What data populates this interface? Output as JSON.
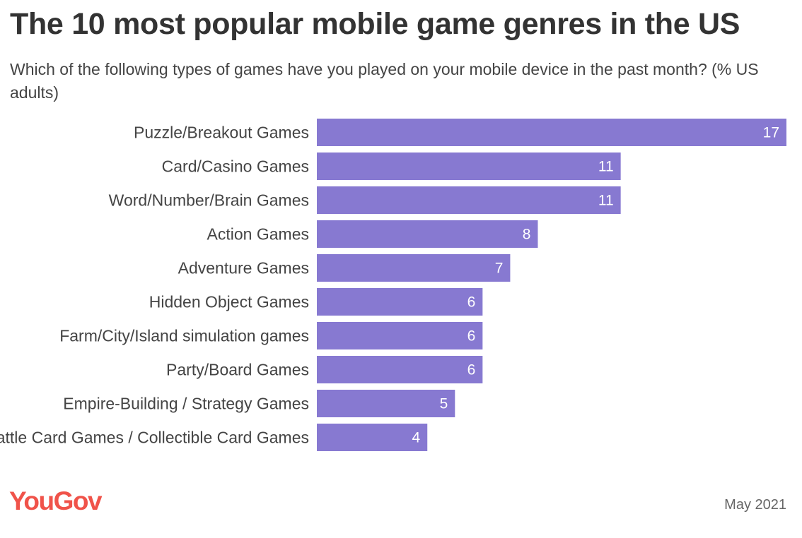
{
  "header": {
    "title": "The 10 most popular mobile game genres in the US",
    "subtitle": "Which of the following types of games have you played on your mobile device in the past month? (% US adults)"
  },
  "footer": {
    "logo_text": "YouGov",
    "date": "May 2021"
  },
  "colors": {
    "bar": "#8779d1",
    "logo": "#f0534a"
  },
  "chart_data": {
    "type": "bar",
    "orientation": "horizontal",
    "title": "The 10 most popular mobile game genres in the US",
    "subtitle": "Which of the following types of games have you played on your mobile device in the past month? (% US adults)",
    "categories": [
      "Puzzle/Breakout Games",
      "Card/Casino Games",
      "Word/Number/Brain Games",
      "Action Games",
      "Adventure Games",
      "Hidden Object Games",
      "Farm/City/Island simulation games",
      "Party/Board Games",
      "Empire-Building / Strategy Games",
      "Battle Card Games / Collectible Card Games"
    ],
    "values": [
      17,
      11,
      11,
      8,
      7,
      6,
      6,
      6,
      5,
      4
    ],
    "xlim": [
      0,
      17
    ],
    "grid": false,
    "legend": "none",
    "data_labels": true
  }
}
